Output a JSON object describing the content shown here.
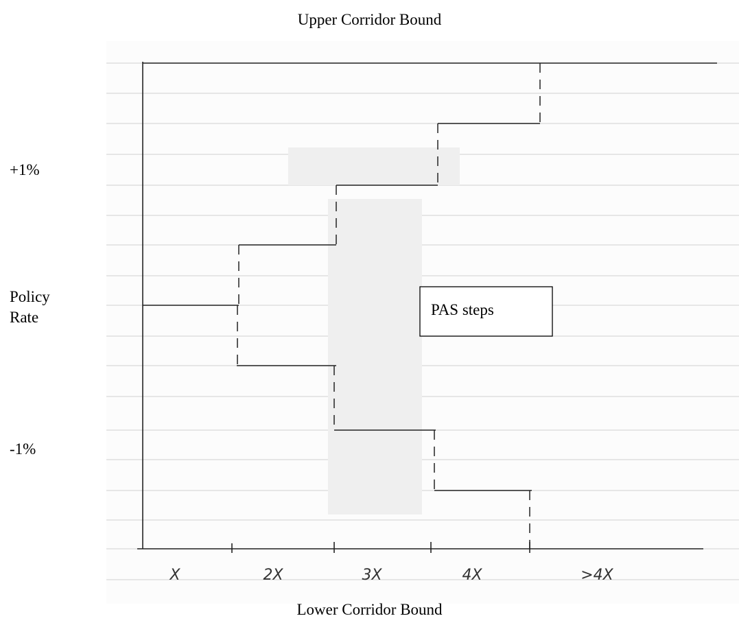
{
  "header": {
    "title": "Upper Corridor Bound"
  },
  "left_labels": {
    "upper": "+1%",
    "middle": "Policy Rate",
    "lower": "-1%"
  },
  "box": {
    "label": "PAS steps"
  },
  "x_labels": [
    "X",
    "2X",
    "3X",
    "4X",
    ">4X"
  ],
  "footer": {
    "title": "Lower Corridor Bound"
  }
}
